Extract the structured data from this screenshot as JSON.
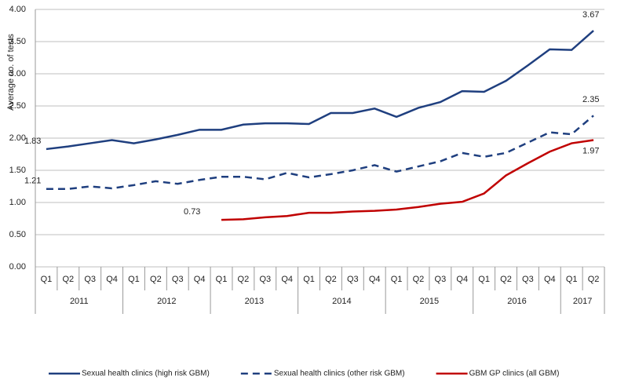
{
  "chart_data": {
    "type": "line",
    "y_axis_label": "Average no. of tests",
    "categories": [
      "Q1",
      "Q2",
      "Q3",
      "Q4",
      "Q1",
      "Q2",
      "Q3",
      "Q4",
      "Q1",
      "Q2",
      "Q3",
      "Q4",
      "Q1",
      "Q2",
      "Q3",
      "Q4",
      "Q1",
      "Q2",
      "Q3",
      "Q4",
      "Q1",
      "Q2",
      "Q3",
      "Q4",
      "Q1",
      "Q2"
    ],
    "years": [
      "2011",
      "2012",
      "2013",
      "2014",
      "2015",
      "2016",
      "2017"
    ],
    "ylim": [
      0,
      4
    ],
    "yticks": [
      {
        "value": 0,
        "label": "0.00"
      },
      {
        "value": 0.5,
        "label": "0.50"
      },
      {
        "value": 1,
        "label": "1.00"
      },
      {
        "value": 1.5,
        "label": "1.50"
      },
      {
        "value": 2,
        "label": "2.00"
      },
      {
        "value": 2.5,
        "label": "2.50"
      },
      {
        "value": 3,
        "label": "3.00"
      },
      {
        "value": 3.5,
        "label": "3.50"
      },
      {
        "value": 4,
        "label": "4.00"
      }
    ],
    "grid": true,
    "legend": "bottom",
    "series": [
      {
        "name": "Sexual health clinics (high risk GBM)",
        "color": "#1f3f7f",
        "line_style": "solid",
        "values": [
          1.83,
          1.87,
          1.92,
          1.97,
          1.92,
          1.98,
          2.05,
          2.13,
          2.13,
          2.21,
          2.23,
          2.23,
          2.22,
          2.39,
          2.39,
          2.46,
          2.33,
          2.47,
          2.56,
          2.73,
          2.72,
          2.89,
          3.13,
          3.38,
          3.37,
          3.67
        ]
      },
      {
        "name": "Sexual health clinics (other risk GBM)",
        "color": "#1f3f7f",
        "line_style": "dashed",
        "values": [
          1.21,
          1.21,
          1.25,
          1.22,
          1.27,
          1.33,
          1.29,
          1.35,
          1.4,
          1.4,
          1.36,
          1.46,
          1.39,
          1.44,
          1.5,
          1.58,
          1.48,
          1.56,
          1.64,
          1.77,
          1.71,
          1.77,
          1.93,
          2.09,
          2.06,
          2.35
        ]
      },
      {
        "name": "GBM GP clinics (all GBM)",
        "color": "#c00000",
        "line_style": "solid",
        "values": [
          null,
          null,
          null,
          null,
          null,
          null,
          null,
          null,
          0.73,
          0.74,
          0.77,
          0.79,
          0.84,
          0.84,
          0.86,
          0.87,
          0.89,
          0.93,
          0.98,
          1.01,
          1.14,
          1.42,
          1.61,
          1.79,
          1.92,
          1.97
        ]
      }
    ]
  }
}
